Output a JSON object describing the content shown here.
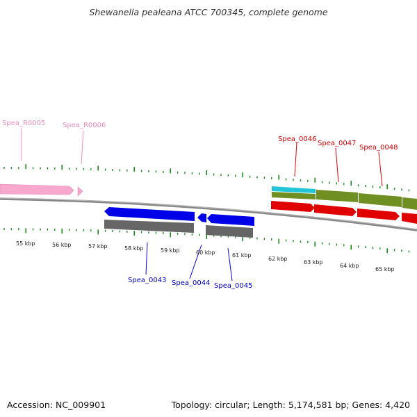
{
  "title": "Shewanella pealeana ATCC 700345, complete genome",
  "footer": {
    "accession": "Accession: NC_009901",
    "summary": "Topology: circular; Length: 5,174,581 bp; Genes: 4,420"
  },
  "colors": {
    "rna": "#f7a8cc",
    "rna_label": "#f08cbf",
    "plus_cds": "#e00000",
    "minus_cds": "#0000e8",
    "gene_bar": "#666666",
    "cog_olive": "#6f8f22",
    "cog_cyan": "#22c4d8",
    "tick": "#1d8a1d",
    "backbone": "#888888"
  },
  "scale": {
    "ticks": [
      {
        "label": "55 kbp"
      },
      {
        "label": "56 kbp"
      },
      {
        "label": "57 kbp"
      },
      {
        "label": "58 kbp"
      },
      {
        "label": "59 kbp"
      },
      {
        "label": "60 kbp"
      },
      {
        "label": "61 kbp"
      },
      {
        "label": "62 kbp"
      },
      {
        "label": "63 kbp"
      },
      {
        "label": "64 kbp"
      },
      {
        "label": "65 kbp"
      }
    ]
  },
  "genes": [
    {
      "id": "Spea_R0005",
      "label": "Spea_R0005",
      "type": "rna"
    },
    {
      "id": "Spea_R0006",
      "label": "Spea_R0006",
      "type": "rna"
    },
    {
      "id": "Spea_0043",
      "label": "Spea_0043",
      "type": "cds_minus"
    },
    {
      "id": "Spea_0044",
      "label": "Spea_0044",
      "type": "cds_minus"
    },
    {
      "id": "Spea_0045",
      "label": "Spea_0045",
      "type": "cds_minus"
    },
    {
      "id": "Spea_0046",
      "label": "Spea_0046",
      "type": "cds_plus"
    },
    {
      "id": "Spea_0047",
      "label": "Spea_0047",
      "type": "cds_plus"
    },
    {
      "id": "Spea_0048",
      "label": "Spea_0048",
      "type": "cds_plus"
    }
  ]
}
